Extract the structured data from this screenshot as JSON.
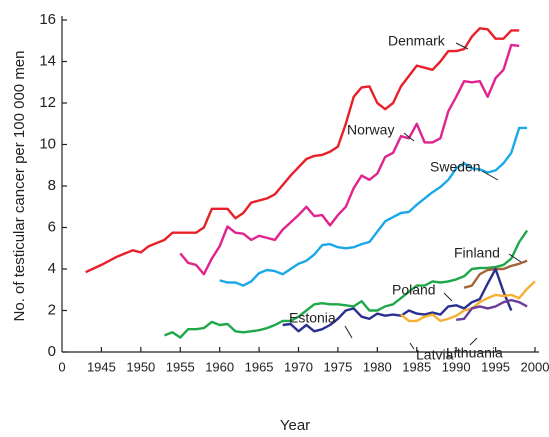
{
  "chart_data": {
    "type": "line",
    "x_label": "Year",
    "y_label": "No. of testicular cancer per 100 000 men",
    "x_origin_label": "0",
    "xlim": [
      1940,
      2000
    ],
    "xticks": [
      1945,
      1950,
      1955,
      1960,
      1965,
      1970,
      1975,
      1980,
      1985,
      1990,
      1995,
      2000
    ],
    "ylim": [
      0,
      16
    ],
    "yticks": [
      0,
      2,
      4,
      6,
      8,
      10,
      12,
      14,
      16
    ],
    "series": [
      {
        "name": "Denmark",
        "color": "#e8202a",
        "x": [
          1943,
          1945,
          1947,
          1948,
          1949,
          1950,
          1951,
          1953,
          1954,
          1957,
          1958,
          1959,
          1961,
          1962,
          1963,
          1964,
          1966,
          1967,
          1969,
          1971,
          1972,
          1973,
          1974,
          1975,
          1976,
          1977,
          1978,
          1979,
          1980,
          1981,
          1982,
          1983,
          1984,
          1985,
          1986,
          1987,
          1988,
          1989,
          1990,
          1991,
          1992,
          1993,
          1994,
          1995,
          1996,
          1997,
          1998
        ],
        "values": [
          3.85,
          4.2,
          4.6,
          4.75,
          4.9,
          4.8,
          5.1,
          5.4,
          5.75,
          5.75,
          6.0,
          6.9,
          6.9,
          6.45,
          6.7,
          7.2,
          7.4,
          7.6,
          8.5,
          9.3,
          9.45,
          9.5,
          9.65,
          9.9,
          11.0,
          12.3,
          12.75,
          12.8,
          12.0,
          11.7,
          12.0,
          12.8,
          13.3,
          13.8,
          13.7,
          13.6,
          14.0,
          14.5,
          14.5,
          14.6,
          15.2,
          15.6,
          15.55,
          15.1,
          15.1,
          15.5,
          15.5
        ]
      },
      {
        "name": "Norway",
        "color": "#e0238f",
        "x": [
          1955,
          1956,
          1957,
          1958,
          1959,
          1960,
          1961,
          1962,
          1963,
          1964,
          1965,
          1966,
          1967,
          1968,
          1970,
          1971,
          1972,
          1973,
          1974,
          1975,
          1976,
          1977,
          1978,
          1979,
          1980,
          1981,
          1982,
          1983,
          1984,
          1985,
          1986,
          1987,
          1988,
          1989,
          1990,
          1991,
          1992,
          1993,
          1994,
          1995,
          1996,
          1997,
          1998
        ],
        "values": [
          4.75,
          4.3,
          4.2,
          3.75,
          4.5,
          5.1,
          6.05,
          5.75,
          5.7,
          5.4,
          5.6,
          5.5,
          5.4,
          5.9,
          6.6,
          7.0,
          6.55,
          6.6,
          6.1,
          6.6,
          7.0,
          7.9,
          8.5,
          8.3,
          8.6,
          9.4,
          9.6,
          10.4,
          10.3,
          11.0,
          10.1,
          10.1,
          10.3,
          11.6,
          12.3,
          13.05,
          13.0,
          13.05,
          12.3,
          13.2,
          13.6,
          14.8,
          14.75
        ]
      },
      {
        "name": "Sweden",
        "color": "#1aa9e8",
        "x": [
          1960,
          1961,
          1962,
          1963,
          1964,
          1965,
          1966,
          1967,
          1968,
          1969,
          1970,
          1971,
          1972,
          1973,
          1974,
          1975,
          1976,
          1977,
          1978,
          1979,
          1980,
          1981,
          1982,
          1983,
          1984,
          1985,
          1986,
          1987,
          1988,
          1989,
          1990,
          1991,
          1992,
          1993,
          1994,
          1995,
          1996,
          1997,
          1998,
          1999
        ],
        "values": [
          3.45,
          3.35,
          3.35,
          3.2,
          3.4,
          3.8,
          3.95,
          3.9,
          3.75,
          4.0,
          4.25,
          4.4,
          4.7,
          5.15,
          5.2,
          5.05,
          5.0,
          5.05,
          5.2,
          5.3,
          5.8,
          6.3,
          6.5,
          6.7,
          6.75,
          7.1,
          7.4,
          7.7,
          7.95,
          8.3,
          8.85,
          9.1,
          8.85,
          8.8,
          8.65,
          8.75,
          9.1,
          9.6,
          10.8,
          10.8
        ]
      },
      {
        "name": "Finland",
        "color": "#1fa84a",
        "x": [
          1953,
          1954,
          1955,
          1956,
          1957,
          1958,
          1959,
          1960,
          1961,
          1962,
          1963,
          1964,
          1965,
          1966,
          1967,
          1968,
          1969,
          1970,
          1971,
          1972,
          1973,
          1974,
          1975,
          1976,
          1977,
          1978,
          1979,
          1980,
          1981,
          1982,
          1983,
          1984,
          1985,
          1986,
          1987,
          1988,
          1989,
          1990,
          1991,
          1992,
          1993,
          1994,
          1995,
          1996,
          1997,
          1998,
          1999
        ],
        "values": [
          0.8,
          0.95,
          0.7,
          1.1,
          1.1,
          1.15,
          1.45,
          1.3,
          1.35,
          1.0,
          0.95,
          1.0,
          1.05,
          1.15,
          1.3,
          1.5,
          1.5,
          1.7,
          2.0,
          2.3,
          2.35,
          2.3,
          2.3,
          2.25,
          2.2,
          2.45,
          2.0,
          2.0,
          2.2,
          2.3,
          2.6,
          2.9,
          3.2,
          3.2,
          3.4,
          3.35,
          3.4,
          3.5,
          3.65,
          4.0,
          4.05,
          4.05,
          4.1,
          4.2,
          4.5,
          5.3,
          5.85
        ]
      },
      {
        "name": "Poland",
        "color": "#a0663a",
        "x": [
          1991,
          1992,
          1993,
          1994,
          1995,
          1996,
          1997,
          1998,
          1999
        ],
        "values": [
          3.1,
          3.2,
          3.75,
          3.95,
          4.0,
          4.0,
          4.15,
          4.25,
          4.4
        ]
      },
      {
        "name": "Estonia",
        "color": "#2b2f8f",
        "x": [
          1968,
          1969,
          1970,
          1971,
          1972,
          1973,
          1974,
          1975,
          1976,
          1977,
          1978,
          1979,
          1980,
          1981,
          1982,
          1983,
          1984,
          1985,
          1986,
          1987,
          1988,
          1989,
          1990,
          1991,
          1992,
          1993,
          1994,
          1995,
          1996,
          1997
        ],
        "values": [
          1.3,
          1.35,
          1.0,
          1.3,
          1.0,
          1.1,
          1.3,
          1.6,
          2.0,
          2.1,
          1.7,
          1.6,
          1.85,
          1.75,
          1.8,
          1.75,
          2.0,
          1.85,
          1.8,
          1.9,
          1.8,
          2.2,
          2.25,
          2.1,
          2.4,
          2.55,
          3.3,
          4.0,
          2.9,
          2.0
        ]
      },
      {
        "name": "Latvia",
        "color": "#f5b035",
        "x": [
          1983,
          1984,
          1985,
          1986,
          1987,
          1988,
          1989,
          1990,
          1991,
          1992,
          1993,
          1994,
          1995,
          1996,
          1997,
          1998,
          1999,
          2000
        ],
        "values": [
          1.8,
          1.5,
          1.5,
          1.7,
          1.8,
          1.5,
          1.6,
          1.75,
          2.0,
          2.1,
          2.4,
          2.6,
          2.75,
          2.7,
          2.75,
          2.6,
          3.05,
          3.4
        ]
      },
      {
        "name": "Lithuania",
        "color": "#6a3d9a",
        "x": [
          1990,
          1991,
          1992,
          1993,
          1994,
          1995,
          1996,
          1997,
          1998,
          1999
        ],
        "values": [
          1.55,
          1.6,
          2.1,
          2.2,
          2.1,
          2.2,
          2.4,
          2.5,
          2.4,
          2.2
        ]
      }
    ]
  }
}
